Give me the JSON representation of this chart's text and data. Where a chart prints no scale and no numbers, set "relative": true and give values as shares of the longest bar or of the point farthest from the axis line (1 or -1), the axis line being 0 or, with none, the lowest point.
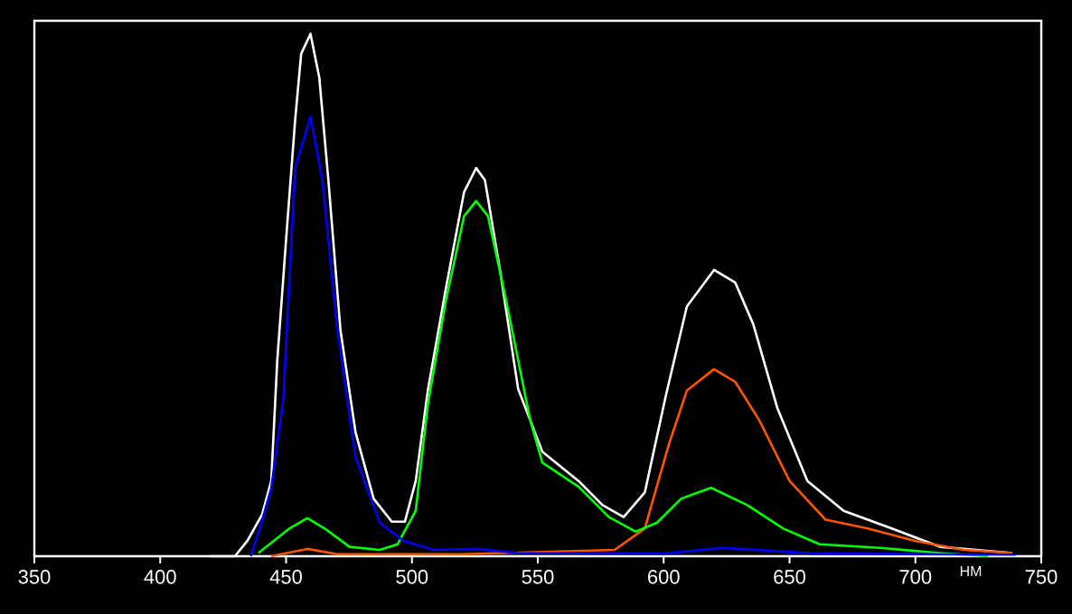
{
  "chart_data": {
    "type": "line",
    "relative": true,
    "xlabel": "НМ",
    "xlim": [
      350,
      750
    ],
    "xticks": [
      350,
      400,
      450,
      500,
      550,
      600,
      650,
      700,
      750
    ],
    "grid": false,
    "marker": "none",
    "line_style": "solid",
    "series": [
      {
        "color": "#ffffff",
        "x": [
          420,
          429.7,
          434.7,
          440.5,
          444.1,
          446.5,
          450,
          453.6,
          456,
          459.7,
          463.2,
          466.8,
          471.6,
          477.6,
          484.8,
          492,
          497.2,
          501.5,
          506.3,
          513.5,
          520.7,
          525.5,
          529,
          535,
          542.2,
          551.8,
          566.2,
          575.7,
          584.1,
          592.5,
          600.8,
          609.2,
          620,
          628.4,
          635.6,
          645.2,
          657.1,
          671.5,
          690.6,
          709.8,
          738.5
        ],
        "values": [
          0,
          0,
          0.03,
          0.08,
          0.144,
          0.375,
          0.606,
          0.835,
          0.962,
          1,
          0.916,
          0.72,
          0.433,
          0.237,
          0.11,
          0.066,
          0.066,
          0.144,
          0.317,
          0.513,
          0.697,
          0.743,
          0.72,
          0.547,
          0.32,
          0.2,
          0.144,
          0.098,
          0.075,
          0.122,
          0.306,
          0.478,
          0.548,
          0.524,
          0.444,
          0.283,
          0.144,
          0.087,
          0.053,
          0.018,
          0.006
        ]
      },
      {
        "color": "#ff5500",
        "x": [
          444,
          458.4,
          470.4,
          520,
          580.5,
          592.5,
          602,
          609.2,
          620,
          628.4,
          638,
          650,
          664.3,
          681,
          700.2,
          719.3,
          738.5
        ],
        "values": [
          0,
          0.014,
          0.004,
          0.004,
          0.012,
          0.053,
          0.213,
          0.317,
          0.358,
          0.334,
          0.26,
          0.144,
          0.07,
          0.053,
          0.029,
          0.012,
          0.006
        ]
      },
      {
        "color": "#00ff00",
        "x": [
          439,
          451,
          458.4,
          465.6,
          475.2,
          487.2,
          494.3,
          501.5,
          506.3,
          513.5,
          520.7,
          525.5,
          530.2,
          537.4,
          547,
          551.8,
          566.2,
          578.2,
          588.9,
          597.3,
          606.9,
          618.8,
          633.2,
          647.5,
          661.9,
          685.9,
          709.8,
          729
        ],
        "values": [
          0.006,
          0.052,
          0.073,
          0.052,
          0.018,
          0.012,
          0.023,
          0.087,
          0.29,
          0.49,
          0.651,
          0.68,
          0.651,
          0.49,
          0.26,
          0.179,
          0.133,
          0.075,
          0.047,
          0.064,
          0.11,
          0.131,
          0.098,
          0.053,
          0.023,
          0.016,
          0.006,
          0
        ]
      },
      {
        "color": "#0000ff",
        "x": [
          436,
          440,
          444.1,
          448.9,
          453.6,
          459.7,
          464.4,
          470.4,
          477.6,
          487.2,
          496.7,
          508.7,
          525.5,
          542,
          600,
          623.6,
          660,
          740
        ],
        "values": [
          0,
          0.06,
          0.13,
          0.3,
          0.743,
          0.841,
          0.72,
          0.432,
          0.19,
          0.064,
          0.029,
          0.012,
          0.014,
          0.006,
          0.005,
          0.016,
          0.005,
          0.003
        ]
      }
    ]
  }
}
